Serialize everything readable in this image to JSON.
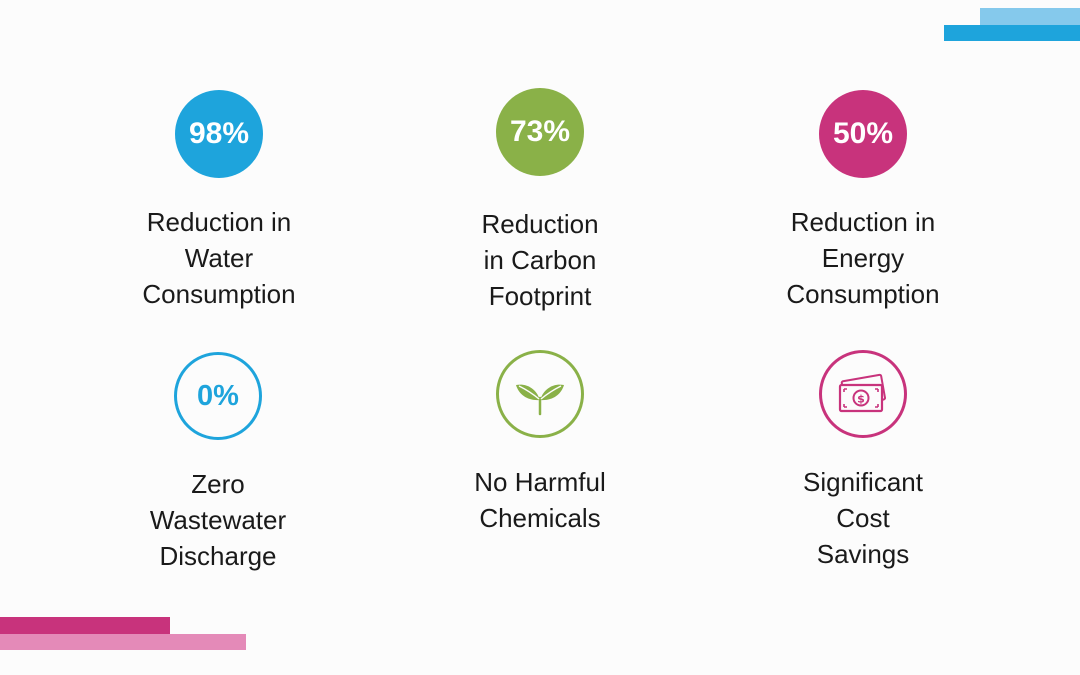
{
  "colors": {
    "blue": "#1ea4dc",
    "blue_light": "#85c9ec",
    "green": "#8ab148",
    "magenta": "#c8337c",
    "magenta_light": "#e48ab8"
  },
  "stats": [
    {
      "value": "98%",
      "label_lines": [
        "Reduction in",
        "Water",
        "Consumption"
      ]
    },
    {
      "value": "73%",
      "label_lines": [
        "Reduction",
        "in Carbon",
        "Footprint"
      ]
    },
    {
      "value": "50%",
      "label_lines": [
        "Reduction in",
        "Energy",
        "Consumption"
      ]
    },
    {
      "value": "0%",
      "label_lines": [
        "Zero",
        "Wastewater",
        "Discharge"
      ]
    },
    {
      "icon": "leaf-sprout-icon",
      "label_lines": [
        "No Harmful",
        "Chemicals"
      ]
    },
    {
      "icon": "money-bills-icon",
      "label_lines": [
        "Significant",
        "Cost",
        "Savings"
      ]
    }
  ]
}
